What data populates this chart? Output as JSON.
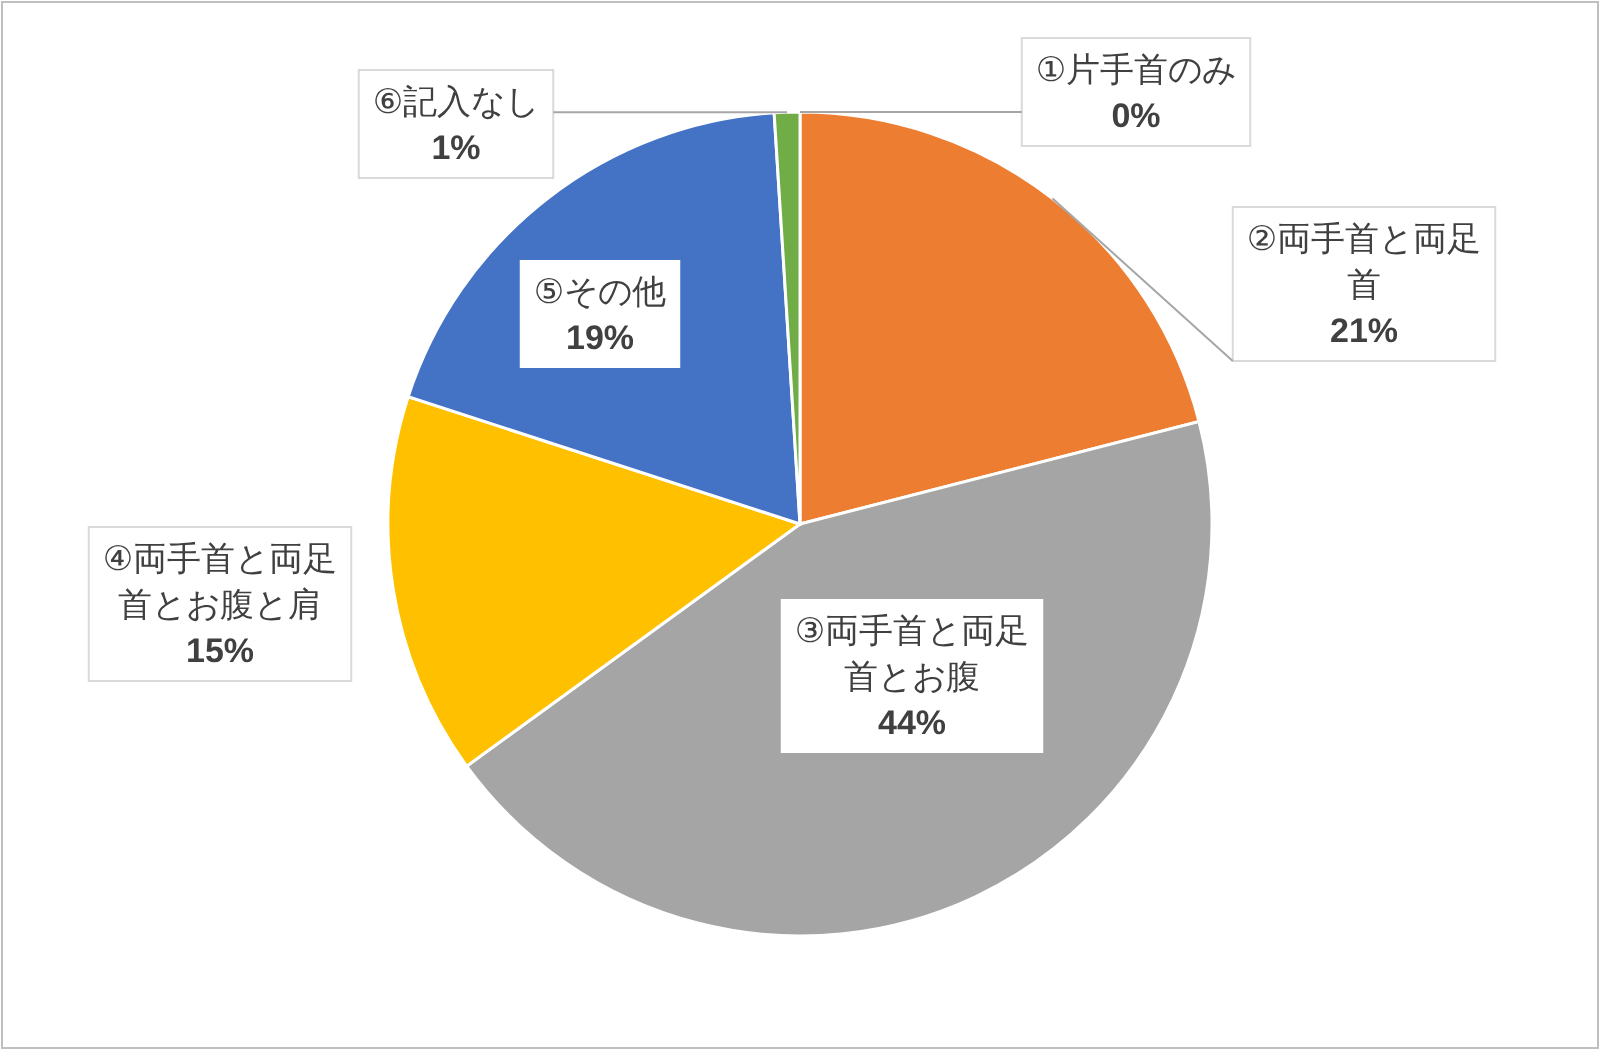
{
  "chart_data": {
    "type": "pie",
    "categories": [
      "①片手首のみ",
      "②両手首と両足首",
      "③両手首と両足首とお腹",
      "④両手首と両足首とお腹と肩",
      "⑤その他",
      "⑥記入なし"
    ],
    "values": [
      0,
      21,
      44,
      15,
      19,
      1
    ],
    "colors": [
      null,
      "#ed7d31",
      "#a5a5a5",
      "#ffc000",
      "#4472c4",
      "#70ad47"
    ],
    "value_labels": [
      "0%",
      "21%",
      "44%",
      "15%",
      "19%",
      "1%"
    ]
  }
}
